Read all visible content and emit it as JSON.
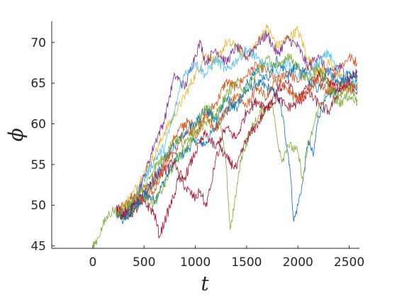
{
  "chart_data": {
    "type": "line",
    "title": "",
    "xlabel": "t",
    "ylabel": "ϕ",
    "xlim": [
      -400,
      2600
    ],
    "ylim": [
      44.7,
      72.6
    ],
    "xticks": [
      0,
      500,
      1000,
      1500,
      2000,
      2500
    ],
    "yticks": [
      45,
      50,
      55,
      60,
      65,
      70
    ],
    "grid": false,
    "legend": "none",
    "series": [
      {
        "color": "#0072BD",
        "points": [
          [
            230,
            49.2
          ],
          [
            300,
            48.3
          ],
          [
            400,
            49.8
          ],
          [
            500,
            51.5
          ],
          [
            600,
            50.6
          ],
          [
            700,
            53
          ],
          [
            800,
            55.5
          ],
          [
            900,
            56.5
          ],
          [
            1000,
            58
          ],
          [
            1100,
            57.5
          ],
          [
            1200,
            59.8
          ],
          [
            1300,
            61.5
          ],
          [
            1400,
            62.5
          ],
          [
            1500,
            64
          ],
          [
            1600,
            65
          ],
          [
            1700,
            64.5
          ],
          [
            1800,
            63.6
          ],
          [
            1850,
            61
          ],
          [
            1920,
            55
          ],
          [
            1960,
            48
          ],
          [
            2000,
            50
          ],
          [
            2050,
            53
          ],
          [
            2100,
            58
          ],
          [
            2150,
            56
          ],
          [
            2200,
            61
          ],
          [
            2300,
            63.5
          ],
          [
            2400,
            64.5
          ],
          [
            2500,
            65.5
          ],
          [
            2580,
            64.5
          ]
        ]
      },
      {
        "color": "#D95319",
        "points": [
          [
            230,
            48.8
          ],
          [
            300,
            49.2
          ],
          [
            400,
            50.2
          ],
          [
            500,
            52.5
          ],
          [
            600,
            51.5
          ],
          [
            700,
            54.5
          ],
          [
            800,
            58.5
          ],
          [
            900,
            60.2
          ],
          [
            1000,
            59.8
          ],
          [
            1100,
            61
          ],
          [
            1200,
            62.5
          ],
          [
            1300,
            65.2
          ],
          [
            1400,
            64.5
          ],
          [
            1500,
            66
          ],
          [
            1600,
            67.2
          ],
          [
            1700,
            66.5
          ],
          [
            1800,
            65
          ],
          [
            1900,
            66.5
          ],
          [
            2000,
            65.2
          ],
          [
            2100,
            67
          ],
          [
            2200,
            66.5
          ],
          [
            2300,
            65
          ],
          [
            2400,
            66.8
          ],
          [
            2500,
            68.2
          ],
          [
            2580,
            67.5
          ]
        ]
      },
      {
        "color": "#EDB120",
        "points": [
          [
            230,
            49
          ],
          [
            300,
            50
          ],
          [
            400,
            51.6
          ],
          [
            500,
            54
          ],
          [
            600,
            56
          ],
          [
            700,
            59
          ],
          [
            800,
            61.2
          ],
          [
            900,
            63.5
          ],
          [
            1000,
            66
          ],
          [
            1100,
            68.5
          ],
          [
            1200,
            67.5
          ],
          [
            1300,
            70
          ],
          [
            1400,
            69.5
          ],
          [
            1500,
            68
          ],
          [
            1600,
            70
          ],
          [
            1700,
            71.8
          ],
          [
            1800,
            69.5
          ],
          [
            1900,
            70.5
          ],
          [
            2000,
            71.5
          ],
          [
            2100,
            68
          ],
          [
            2200,
            66
          ],
          [
            2300,
            67.5
          ],
          [
            2400,
            66
          ],
          [
            2500,
            64.5
          ],
          [
            2580,
            65
          ]
        ]
      },
      {
        "color": "#7E2F8E",
        "points": [
          [
            230,
            49.3
          ],
          [
            300,
            48.8
          ],
          [
            400,
            50.5
          ],
          [
            500,
            53.5
          ],
          [
            600,
            57.5
          ],
          [
            700,
            60.5
          ],
          [
            750,
            63.5
          ],
          [
            800,
            66
          ],
          [
            900,
            64.5
          ],
          [
            1000,
            68.5
          ],
          [
            1050,
            70
          ],
          [
            1100,
            67.5
          ],
          [
            1200,
            69.2
          ],
          [
            1300,
            67.5
          ],
          [
            1400,
            69.5
          ],
          [
            1500,
            68.2
          ],
          [
            1600,
            69.8
          ],
          [
            1700,
            71
          ],
          [
            1800,
            68.5
          ],
          [
            1900,
            70.5
          ],
          [
            2000,
            69.5
          ],
          [
            2100,
            67
          ],
          [
            2200,
            68.5
          ],
          [
            2300,
            66
          ],
          [
            2400,
            67.2
          ],
          [
            2500,
            65.5
          ],
          [
            2580,
            66.5
          ]
        ]
      },
      {
        "color": "#77AC30",
        "points": [
          [
            0,
            44.8
          ],
          [
            50,
            46
          ],
          [
            100,
            47.5
          ],
          [
            150,
            48.8
          ],
          [
            200,
            49.4
          ],
          [
            300,
            48.5
          ],
          [
            400,
            49.5
          ],
          [
            500,
            51
          ],
          [
            600,
            50.2
          ],
          [
            700,
            52.5
          ],
          [
            800,
            55.2
          ],
          [
            900,
            57
          ],
          [
            1000,
            58.8
          ],
          [
            1100,
            60.3
          ],
          [
            1200,
            61.2
          ],
          [
            1250,
            59.5
          ],
          [
            1300,
            55
          ],
          [
            1340,
            47
          ],
          [
            1380,
            50
          ],
          [
            1450,
            56
          ],
          [
            1550,
            59.5
          ],
          [
            1650,
            61.5
          ],
          [
            1750,
            62.5
          ],
          [
            1800,
            58
          ],
          [
            1850,
            55.5
          ],
          [
            1900,
            57.5
          ],
          [
            2000,
            56.5
          ],
          [
            2050,
            53
          ],
          [
            2080,
            56
          ],
          [
            2150,
            59.5
          ],
          [
            2200,
            62
          ],
          [
            2300,
            64
          ],
          [
            2400,
            63.5
          ],
          [
            2500,
            64.5
          ],
          [
            2580,
            63
          ]
        ]
      },
      {
        "color": "#4DBEEE",
        "points": [
          [
            230,
            48.8
          ],
          [
            300,
            49.2
          ],
          [
            400,
            50.5
          ],
          [
            500,
            53.2
          ],
          [
            600,
            55.5
          ],
          [
            700,
            57.2
          ],
          [
            800,
            61.5
          ],
          [
            850,
            64.5
          ],
          [
            900,
            66.2
          ],
          [
            1000,
            67.5
          ],
          [
            1100,
            66
          ],
          [
            1200,
            68
          ],
          [
            1300,
            66.5
          ],
          [
            1400,
            67.8
          ],
          [
            1500,
            69.2
          ],
          [
            1600,
            68
          ],
          [
            1700,
            67
          ],
          [
            1800,
            66.2
          ],
          [
            1900,
            67.8
          ],
          [
            2000,
            65.8
          ],
          [
            2100,
            66.2
          ],
          [
            2200,
            67.5
          ],
          [
            2300,
            68.8
          ],
          [
            2400,
            66
          ],
          [
            2500,
            64.5
          ],
          [
            2580,
            65.2
          ]
        ]
      },
      {
        "color": "#A2142F",
        "points": [
          [
            230,
            49.4
          ],
          [
            300,
            48.6
          ],
          [
            400,
            49.2
          ],
          [
            500,
            50.4
          ],
          [
            600,
            49
          ],
          [
            650,
            46.2
          ],
          [
            700,
            48
          ],
          [
            800,
            51.5
          ],
          [
            850,
            54
          ],
          [
            900,
            52.2
          ],
          [
            1000,
            50.8
          ],
          [
            1050,
            51.8
          ],
          [
            1100,
            49.8
          ],
          [
            1150,
            52.2
          ],
          [
            1200,
            55.8
          ],
          [
            1250,
            57
          ],
          [
            1300,
            55.8
          ],
          [
            1400,
            54.5
          ],
          [
            1500,
            58.2
          ],
          [
            1600,
            59.8
          ],
          [
            1700,
            62
          ],
          [
            1800,
            63.2
          ],
          [
            1900,
            62
          ],
          [
            2000,
            62.5
          ],
          [
            2100,
            63.8
          ],
          [
            2200,
            62.5
          ],
          [
            2300,
            61.5
          ],
          [
            2400,
            64
          ],
          [
            2500,
            65.5
          ],
          [
            2580,
            66
          ]
        ]
      },
      {
        "color": "#A2142F",
        "points": [
          [
            230,
            49.6
          ],
          [
            300,
            49.2
          ],
          [
            400,
            50
          ],
          [
            500,
            51.8
          ],
          [
            600,
            53.5
          ],
          [
            700,
            54.2
          ],
          [
            800,
            55.5
          ],
          [
            850,
            52.8
          ],
          [
            900,
            53.5
          ],
          [
            1000,
            56.5
          ],
          [
            1100,
            58.8
          ],
          [
            1200,
            57
          ],
          [
            1300,
            59.5
          ],
          [
            1400,
            58.2
          ],
          [
            1500,
            61.5
          ],
          [
            1600,
            62.8
          ],
          [
            1700,
            62
          ],
          [
            1800,
            64.2
          ],
          [
            1900,
            65
          ],
          [
            2000,
            63
          ],
          [
            2100,
            64.8
          ],
          [
            2200,
            66
          ],
          [
            2300,
            65.2
          ],
          [
            2400,
            64
          ],
          [
            2500,
            64.8
          ],
          [
            2580,
            64
          ]
        ]
      },
      {
        "color": "#0072BD",
        "points": [
          [
            230,
            49
          ],
          [
            300,
            48.2
          ],
          [
            400,
            49.6
          ],
          [
            500,
            51.2
          ],
          [
            600,
            53
          ],
          [
            700,
            55.8
          ],
          [
            800,
            57.2
          ],
          [
            900,
            59
          ],
          [
            1000,
            60
          ],
          [
            1100,
            61.8
          ],
          [
            1200,
            60.5
          ],
          [
            1300,
            63.2
          ],
          [
            1400,
            62
          ],
          [
            1500,
            64.8
          ],
          [
            1600,
            66.5
          ],
          [
            1700,
            65.5
          ],
          [
            1800,
            67.8
          ],
          [
            1900,
            66
          ],
          [
            2000,
            67.2
          ],
          [
            2100,
            65.5
          ],
          [
            2200,
            64.2
          ],
          [
            2300,
            66.5
          ],
          [
            2400,
            65
          ],
          [
            2500,
            66.2
          ],
          [
            2580,
            65.5
          ]
        ]
      },
      {
        "color": "#D95319",
        "points": [
          [
            230,
            49.2
          ],
          [
            300,
            49.8
          ],
          [
            400,
            51.2
          ],
          [
            500,
            50.5
          ],
          [
            600,
            52.8
          ],
          [
            700,
            55
          ],
          [
            800,
            56.5
          ],
          [
            900,
            59.5
          ],
          [
            1000,
            58.5
          ],
          [
            1100,
            60.8
          ],
          [
            1200,
            59.2
          ],
          [
            1300,
            61.8
          ],
          [
            1400,
            63.5
          ],
          [
            1500,
            62.2
          ],
          [
            1600,
            64.5
          ],
          [
            1700,
            63.2
          ],
          [
            1800,
            65.8
          ],
          [
            1900,
            64.2
          ],
          [
            2000,
            62.8
          ],
          [
            2100,
            64
          ],
          [
            2200,
            65.5
          ],
          [
            2300,
            63.8
          ],
          [
            2400,
            65
          ],
          [
            2500,
            64.2
          ],
          [
            2580,
            65
          ]
        ]
      },
      {
        "color": "#77AC30",
        "points": [
          [
            230,
            48.7
          ],
          [
            300,
            49.5
          ],
          [
            400,
            50.8
          ],
          [
            500,
            52.2
          ],
          [
            600,
            54.6
          ],
          [
            700,
            56
          ],
          [
            800,
            58.2
          ],
          [
            900,
            57.5
          ],
          [
            1000,
            59.8
          ],
          [
            1100,
            62
          ],
          [
            1200,
            61
          ],
          [
            1300,
            63.5
          ],
          [
            1400,
            65.2
          ],
          [
            1500,
            64
          ],
          [
            1600,
            66.2
          ],
          [
            1700,
            68
          ],
          [
            1800,
            66.8
          ],
          [
            1900,
            68.5
          ],
          [
            2000,
            67
          ],
          [
            2100,
            65.2
          ],
          [
            2200,
            66.8
          ],
          [
            2300,
            64.8
          ],
          [
            2400,
            62.5
          ],
          [
            2500,
            63.5
          ],
          [
            2580,
            62.5
          ]
        ]
      }
    ]
  }
}
